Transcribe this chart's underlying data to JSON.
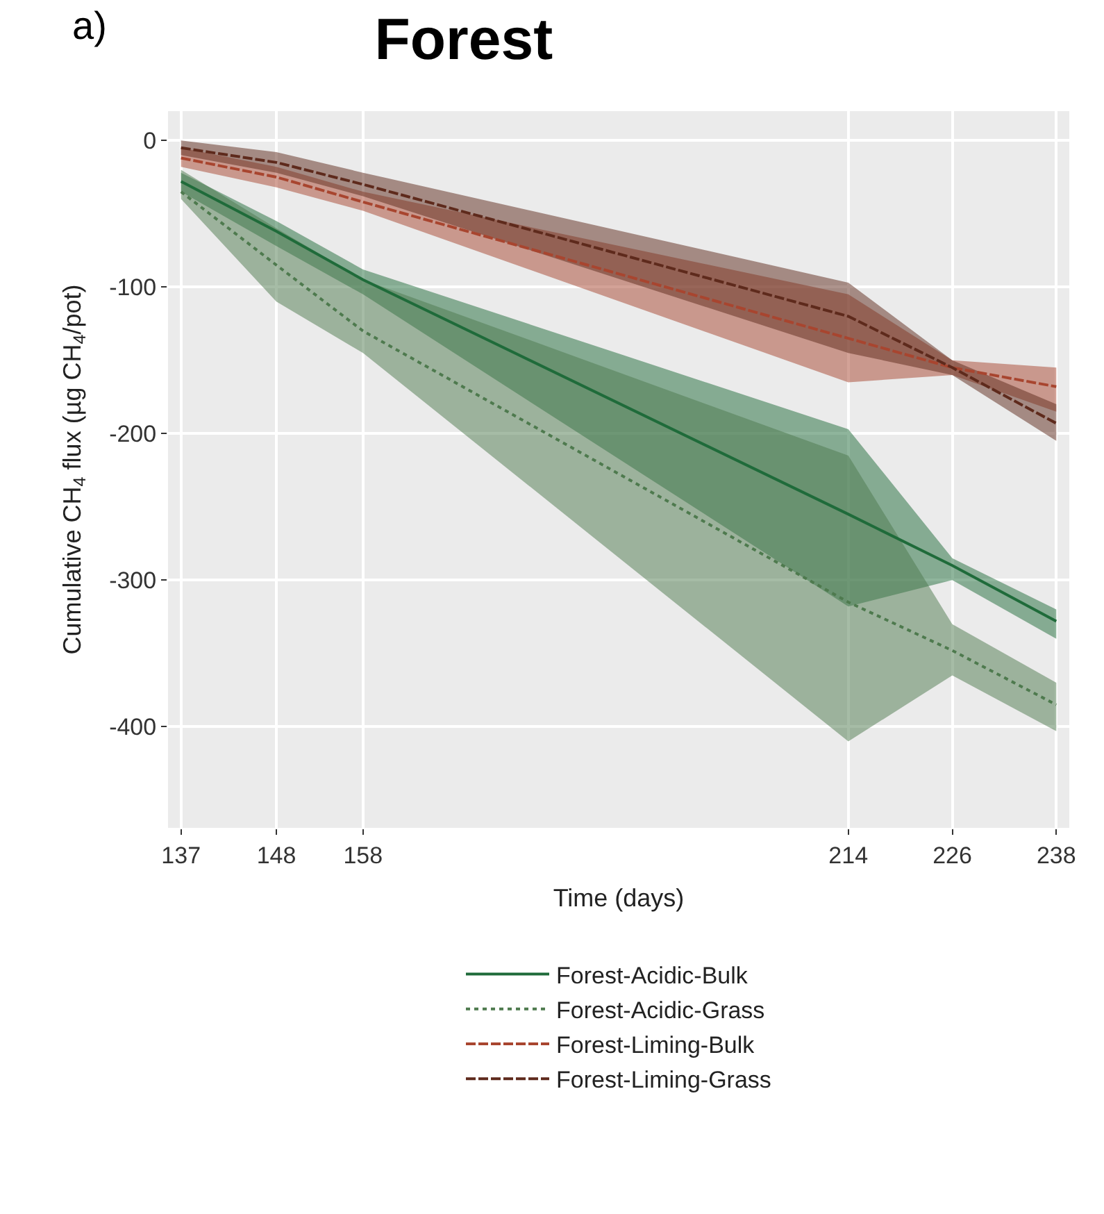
{
  "chart_data": {
    "type": "line",
    "title": "Forest",
    "xlabel": "Time (days)",
    "ylabel": "Cumulative CH$_{4}$ flux (µg CH$_{4}$/pot)",
    "annotations": [
      "a)"
    ],
    "x": [
      137,
      148,
      158,
      214,
      226,
      238
    ],
    "xlim": [
      135.5,
      239.5
    ],
    "xticks": [
      137,
      148,
      158,
      214,
      226,
      238
    ],
    "ylim": [
      -469,
      20
    ],
    "yticks": [
      -400,
      -300,
      -200,
      -100,
      0
    ],
    "grid": true,
    "legend": "bottom",
    "series": [
      {
        "name": "Forest-Acidic-Bulk",
        "color": "#1f6b3a",
        "line_style": "solid",
        "values": [
          -28,
          -62,
          -95,
          -255,
          -290,
          -328
        ],
        "lower": [
          -35,
          -72,
          -105,
          -318,
          -300,
          -340
        ],
        "upper": [
          -22,
          -55,
          -88,
          -197,
          -285,
          -320
        ]
      },
      {
        "name": "Forest-Acidic-Grass",
        "color": "#4e7a4e",
        "line_style": "dotted",
        "values": [
          -35,
          -85,
          -130,
          -315,
          -348,
          -385
        ],
        "lower": [
          -40,
          -110,
          -145,
          -410,
          -365,
          -403
        ],
        "upper": [
          -20,
          -60,
          -95,
          -215,
          -330,
          -370
        ]
      },
      {
        "name": "Forest-Liming-Bulk",
        "color": "#a8452f",
        "line_style": "dashed",
        "values": [
          -12,
          -25,
          -42,
          -135,
          -155,
          -168
        ],
        "lower": [
          -18,
          -32,
          -48,
          -165,
          -160,
          -185
        ],
        "upper": [
          -5,
          -18,
          -35,
          -105,
          -150,
          -155
        ]
      },
      {
        "name": "Forest-Liming-Grass",
        "color": "#5e2a1c",
        "line_style": "dashed",
        "values": [
          -5,
          -15,
          -30,
          -120,
          -155,
          -193
        ],
        "lower": [
          -10,
          -22,
          -38,
          -145,
          -160,
          -205
        ],
        "upper": [
          0,
          -8,
          -22,
          -97,
          -150,
          -180
        ]
      }
    ]
  }
}
